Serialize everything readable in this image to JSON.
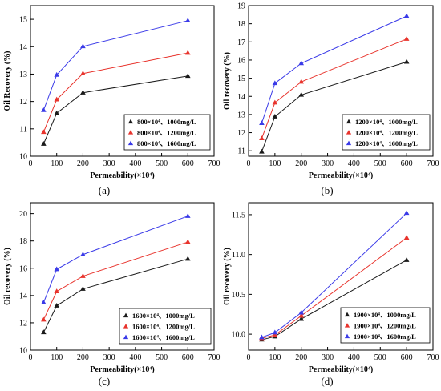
{
  "colors": {
    "black": "#1a1a1a",
    "red": "#e8332c",
    "blue": "#3a3ae8",
    "axis": "#000000",
    "background": "#ffffff"
  },
  "chart_data": [
    {
      "type": "line",
      "panel_label": "(a)",
      "xlabel": "Permeability(×10⁴)",
      "ylabel": "Oil Recovery (%)",
      "x": [
        50,
        100,
        200,
        600
      ],
      "xlim": [
        0,
        700
      ],
      "xticks": [
        "0",
        "100",
        "200",
        "300",
        "400",
        "500",
        "600",
        "700"
      ],
      "ylim": [
        10,
        15.5
      ],
      "yticks": [
        "10",
        "11",
        "12",
        "13",
        "14",
        "15"
      ],
      "legend_position": "bottom-right",
      "series": [
        {
          "name": "800×10⁴、1000mg/L",
          "color": "#1a1a1a",
          "values": [
            10.45,
            11.57,
            12.32,
            12.93
          ]
        },
        {
          "name": "800×10⁴、1200mg/L",
          "color": "#e8332c",
          "values": [
            10.88,
            12.07,
            13.02,
            13.77
          ]
        },
        {
          "name": "800×10⁴、1600mg/L",
          "color": "#3a3ae8",
          "values": [
            11.68,
            12.97,
            14.01,
            14.95
          ]
        }
      ]
    },
    {
      "type": "line",
      "panel_label": "(b)",
      "xlabel": "Permeability(×10⁴)",
      "ylabel": "Oil recovery (%)",
      "x": [
        50,
        100,
        200,
        600
      ],
      "xlim": [
        0,
        700
      ],
      "xticks": [
        "0",
        "100",
        "200",
        "300",
        "400",
        "500",
        "600",
        "700"
      ],
      "ylim": [
        10.7,
        19
      ],
      "yticks": [
        "11",
        "12",
        "13",
        "14",
        "15",
        "16",
        "17",
        "18",
        "19"
      ],
      "legend_position": "bottom-right",
      "series": [
        {
          "name": "1200×10⁴、1000mg/L",
          "color": "#1a1a1a",
          "values": [
            10.95,
            12.88,
            14.08,
            15.9
          ]
        },
        {
          "name": "1200×10⁴、1200mg/L",
          "color": "#e8332c",
          "values": [
            11.68,
            13.65,
            14.8,
            17.16
          ]
        },
        {
          "name": "1200×10⁴、1600mg/L",
          "color": "#3a3ae8",
          "values": [
            12.52,
            14.72,
            15.82,
            18.42
          ]
        }
      ]
    },
    {
      "type": "line",
      "panel_label": "(c)",
      "xlabel": "Permeability(×10⁴)",
      "ylabel": "Oil recovery (%)",
      "x": [
        50,
        100,
        200,
        600
      ],
      "xlim": [
        0,
        700
      ],
      "xticks": [
        "0",
        "100",
        "200",
        "300",
        "400",
        "500",
        "600",
        "700"
      ],
      "ylim": [
        10,
        20.8
      ],
      "yticks": [
        "10",
        "12",
        "14",
        "16",
        "18",
        "20"
      ],
      "legend_position": "bottom-right",
      "series": [
        {
          "name": "1600×10⁴、1000mg/L",
          "color": "#1a1a1a",
          "values": [
            11.3,
            13.25,
            14.48,
            16.68
          ]
        },
        {
          "name": "1600×10⁴、1200mg/L",
          "color": "#e8332c",
          "values": [
            12.22,
            14.3,
            15.42,
            17.92
          ]
        },
        {
          "name": "1600×10⁴、1600mg/L",
          "color": "#3a3ae8",
          "values": [
            13.48,
            15.92,
            17.0,
            19.82
          ]
        }
      ]
    },
    {
      "type": "line",
      "panel_label": "(d)",
      "xlabel": "Permeability(×10⁴)",
      "ylabel": "Oil recovery (%)",
      "x": [
        50,
        100,
        200,
        600
      ],
      "xlim": [
        0,
        700
      ],
      "xticks": [
        "0",
        "100",
        "200",
        "300",
        "400",
        "500",
        "600",
        "700"
      ],
      "ylim": [
        9.8,
        11.65
      ],
      "yticks": [
        "10.0",
        "10.5",
        "11.0",
        "11.5"
      ],
      "legend_position": "bottom-right",
      "series": [
        {
          "name": "1900×10⁴、1000mg/L",
          "color": "#1a1a1a",
          "values": [
            9.93,
            9.97,
            10.19,
            10.93
          ]
        },
        {
          "name": "1900×10⁴、1200mg/L",
          "color": "#e8332c",
          "values": [
            9.95,
            9.99,
            10.23,
            11.21
          ]
        },
        {
          "name": "1900×10⁴、1600mg/L",
          "color": "#3a3ae8",
          "values": [
            9.96,
            10.02,
            10.27,
            11.52
          ]
        }
      ]
    }
  ]
}
